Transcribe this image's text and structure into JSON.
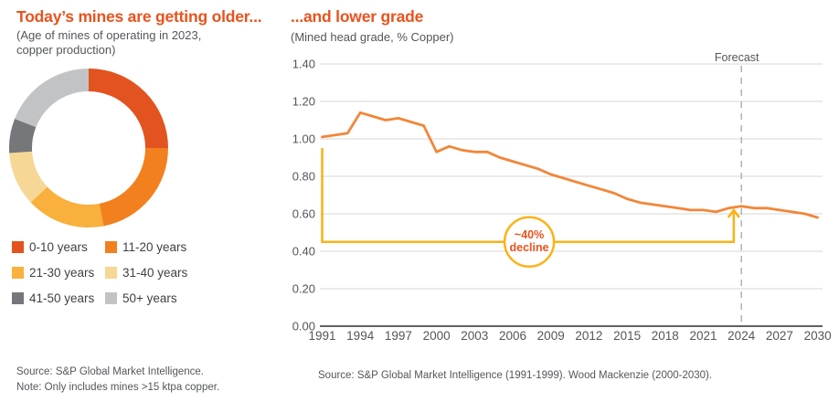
{
  "left_chart": {
    "title": "Today’s mines are getting older...",
    "subtitle": "(Age of mines of operating in 2023, copper production)",
    "source_line1": "Source: S&P Global Market Intelligence.",
    "source_line2": "Note: Only includes mines >15 ktpa copper."
  },
  "right_chart": {
    "title": "...and lower grade",
    "subtitle": "(Mined head grade, % Copper)",
    "source": "Source: S&P Global Market Intelligence (1991-1999). Wood Mackenzie (2000-2030)."
  },
  "colors": {
    "accent_orange": "#E9531E",
    "line_orange": "#F28638",
    "annotation_yellow": "#FCB216",
    "grid_gray": "#D7D7D7",
    "axis_dark": "#5E6165",
    "text_gray": "#54565A",
    "forecast_dash_gray": "#ABADB0"
  },
  "chart_data": [
    {
      "type": "pie",
      "donut": true,
      "title": "Today’s mines are getting older...",
      "subtitle": "(Age of mines of operating in 2023, copper production)",
      "categories": [
        "0-10 years",
        "11-20 years",
        "21-30 years",
        "31-40 years",
        "41-50 years",
        "50+ years"
      ],
      "values": [
        25,
        22,
        16,
        11,
        7,
        19
      ],
      "colors": [
        "#E25320",
        "#F2801F",
        "#F9B03C",
        "#F7D795",
        "#76777A",
        "#C2C3C5"
      ],
      "legend_position": "bottom"
    },
    {
      "type": "line",
      "title": "...and lower grade",
      "subtitle": "(Mined head grade, % Copper)",
      "xlabel": "",
      "ylabel": "Mined head grade, % Copper",
      "ylim": [
        0.0,
        1.4
      ],
      "yticks": [
        0.0,
        0.2,
        0.4,
        0.6,
        0.8,
        1.0,
        1.2,
        1.4
      ],
      "xticks": [
        1991,
        1994,
        1997,
        2000,
        2003,
        2006,
        2009,
        2012,
        2015,
        2018,
        2021,
        2024,
        2027,
        2030
      ],
      "grid": true,
      "x": [
        1991,
        1992,
        1993,
        1994,
        1995,
        1996,
        1997,
        1998,
        1999,
        2000,
        2001,
        2002,
        2003,
        2004,
        2005,
        2006,
        2007,
        2008,
        2009,
        2010,
        2011,
        2012,
        2013,
        2014,
        2015,
        2016,
        2017,
        2018,
        2019,
        2020,
        2021,
        2022,
        2023,
        2024,
        2025,
        2026,
        2027,
        2028,
        2029,
        2030
      ],
      "values": [
        1.01,
        1.02,
        1.03,
        1.14,
        1.12,
        1.1,
        1.11,
        1.09,
        1.07,
        0.93,
        0.96,
        0.94,
        0.93,
        0.93,
        0.9,
        0.88,
        0.86,
        0.84,
        0.81,
        0.79,
        0.77,
        0.75,
        0.73,
        0.71,
        0.68,
        0.66,
        0.65,
        0.64,
        0.63,
        0.62,
        0.62,
        0.61,
        0.63,
        0.64,
        0.63,
        0.63,
        0.62,
        0.61,
        0.6,
        0.58
      ],
      "forecast_label": "Forecast",
      "forecast_start_x": 2024,
      "annotation": {
        "line1": "~40%",
        "line2": "decline",
        "level": 0.45,
        "from_x": 1991,
        "arrow_x": 2023.4,
        "circle_x": 2007.3
      }
    }
  ]
}
